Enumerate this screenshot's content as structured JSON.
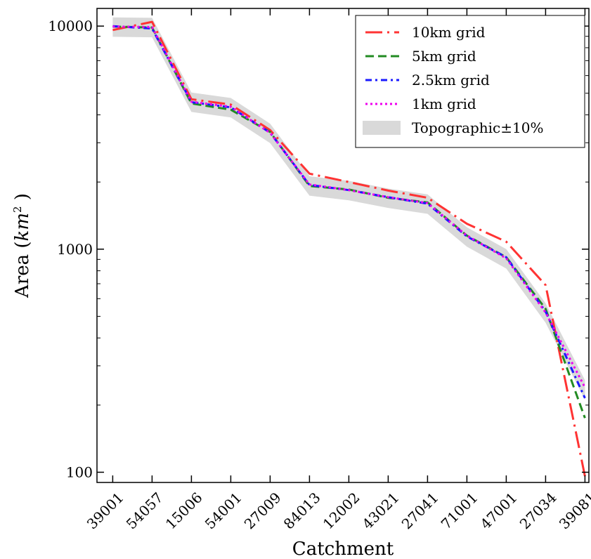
{
  "chart_data": {
    "type": "line",
    "title": "",
    "xlabel": "Catchment",
    "ylabel": "Area (km^2)",
    "ylabel_parts": {
      "prefix": "Area (",
      "italic": "km",
      "sup": "2",
      "suffix": " )"
    },
    "yscale": "log",
    "ylim": [
      90,
      12000
    ],
    "yticks": [
      100,
      1000,
      10000
    ],
    "ytick_labels": [
      "100",
      "1000",
      "10000"
    ],
    "grid": false,
    "legend_position": "top-right",
    "categories": [
      "39001",
      "54057",
      "15006",
      "54001",
      "27009",
      "84013",
      "12002",
      "43021",
      "27041",
      "71001",
      "47001",
      "27034",
      "39081"
    ],
    "band": {
      "name": "Topographic±10%",
      "center": [
        9950,
        9900,
        4580,
        4330,
        3320,
        1930,
        1840,
        1700,
        1600,
        1140,
        910,
        520,
        235
      ],
      "relative_width": 0.1,
      "color": "#d9d9d9"
    },
    "series": [
      {
        "name": "10km grid",
        "color": "#ff3333",
        "dash": "long-dash-dot",
        "values": [
          9600,
          10450,
          4700,
          4450,
          3420,
          2180,
          2000,
          1830,
          1700,
          1300,
          1080,
          690,
          96
        ]
      },
      {
        "name": "5km grid",
        "color": "#228b22",
        "dash": "dashed",
        "values": [
          9950,
          9850,
          4500,
          4220,
          3350,
          1920,
          1850,
          1700,
          1620,
          1150,
          920,
          540,
          175
        ]
      },
      {
        "name": "2.5km grid",
        "color": "#1a1aff",
        "dash": "dash-dot",
        "values": [
          10000,
          9750,
          4560,
          4320,
          3330,
          1940,
          1840,
          1710,
          1600,
          1140,
          920,
          525,
          215
        ]
      },
      {
        "name": "1km grid",
        "color": "#ee00ee",
        "dash": "dotted",
        "values": [
          9950,
          9900,
          4580,
          4350,
          3320,
          1950,
          1840,
          1710,
          1610,
          1150,
          910,
          520,
          240
        ]
      }
    ]
  }
}
